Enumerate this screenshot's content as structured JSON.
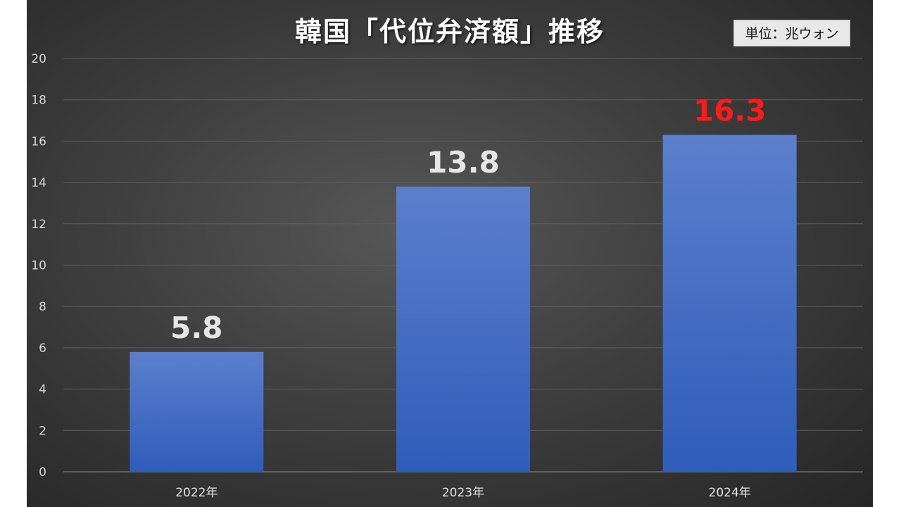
{
  "chart_data": {
    "type": "bar",
    "title": "韓国「代位弁済額」推移",
    "unit_label": "単位：兆ウォン",
    "categories": [
      "2022年",
      "2023年",
      "2024年"
    ],
    "values": [
      5.8,
      13.8,
      16.3
    ],
    "data_labels": [
      "5.8",
      "13.8",
      "16.3"
    ],
    "ylim": [
      0,
      20
    ],
    "yticks": [
      "0",
      "2",
      "4",
      "6",
      "8",
      "10",
      "12",
      "14",
      "16",
      "18",
      "20"
    ],
    "grid": true,
    "legend": "none"
  },
  "colors": {
    "bar_top": "#5b7fcc",
    "bar_bottom": "#2f5dba",
    "label_default": "#e6e6e6",
    "label_highlight": "#ff1a1a",
    "gridline": "#5e5e5e",
    "axis": "#8a8a8a"
  }
}
